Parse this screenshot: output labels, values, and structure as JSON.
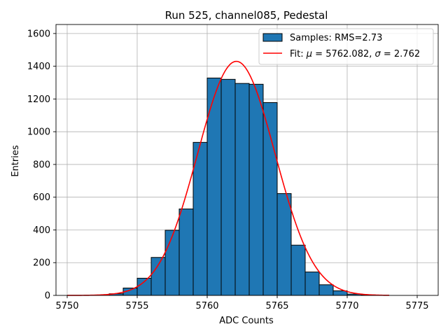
{
  "chart_data": {
    "type": "bar",
    "title": "Run 525, channel085, Pedestal",
    "xlabel": "ADC Counts",
    "ylabel": "Entries",
    "xlim": [
      5749.2,
      5776.5
    ],
    "ylim": [
      0,
      1655
    ],
    "xticks": [
      5750,
      5755,
      5760,
      5765,
      5770,
      5775
    ],
    "yticks": [
      0,
      200,
      400,
      600,
      800,
      1000,
      1200,
      1400,
      1600
    ],
    "grid": true,
    "legend_position": "top-right",
    "colors": {
      "bar_fill": "#1f77b4",
      "bar_edge": "#000000",
      "fit_line": "#ff0000",
      "grid": "#b0b0b0"
    },
    "histogram": {
      "name": "Samples: RMS=2.73",
      "bin_width": 1,
      "bins": [
        {
          "start": 5753,
          "count": 10
        },
        {
          "start": 5754,
          "count": 45
        },
        {
          "start": 5755,
          "count": 105
        },
        {
          "start": 5756,
          "count": 232
        },
        {
          "start": 5757,
          "count": 398
        },
        {
          "start": 5758,
          "count": 528
        },
        {
          "start": 5759,
          "count": 935
        },
        {
          "start": 5760,
          "count": 1328
        },
        {
          "start": 5761,
          "count": 1320
        },
        {
          "start": 5762,
          "count": 1295
        },
        {
          "start": 5763,
          "count": 1290
        },
        {
          "start": 5764,
          "count": 1178
        },
        {
          "start": 5765,
          "count": 622
        },
        {
          "start": 5766,
          "count": 307
        },
        {
          "start": 5767,
          "count": 143
        },
        {
          "start": 5768,
          "count": 65
        },
        {
          "start": 5769,
          "count": 28
        },
        {
          "start": 5770,
          "count": 8
        },
        {
          "start": 5771,
          "count": 3
        }
      ]
    },
    "fit": {
      "name": "Fit: μ = 5762.082, σ = 2.762",
      "label_prefix": "Fit: ",
      "label_mu": "μ",
      "label_mid": " = 5762.082, ",
      "label_sigma": "σ",
      "label_end": " = 2.762",
      "mu": 5762.082,
      "sigma": 2.762,
      "amplitude": 1430,
      "x_range": [
        5750,
        5773
      ]
    }
  }
}
